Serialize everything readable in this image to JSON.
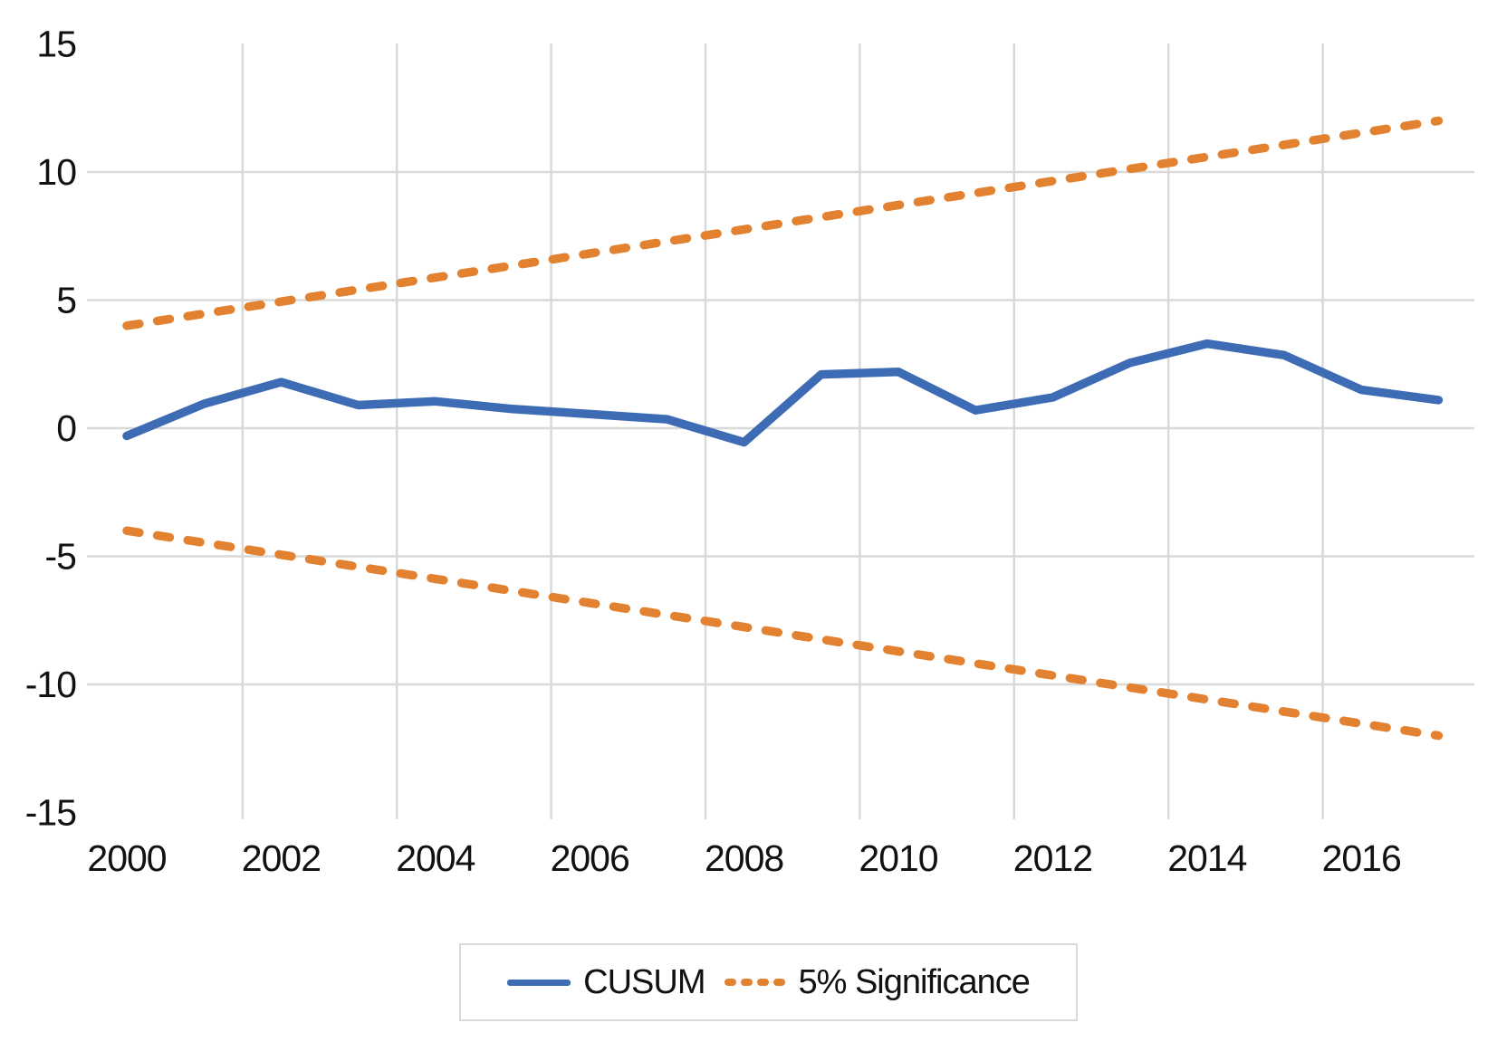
{
  "chart_data": {
    "type": "line",
    "title": "",
    "xlabel": "",
    "ylabel": "",
    "x": [
      2000,
      2001,
      2002,
      2003,
      2004,
      2005,
      2006,
      2007,
      2008,
      2009,
      2010,
      2011,
      2012,
      2013,
      2014,
      2015,
      2016,
      2017
    ],
    "series": [
      {
        "name": "CUSUM",
        "style": "solid",
        "color": "#3E6CB4",
        "values": [
          -0.3,
          0.95,
          1.8,
          0.9,
          1.05,
          0.75,
          0.55,
          0.35,
          -0.55,
          2.1,
          2.2,
          0.7,
          1.2,
          2.55,
          3.3,
          2.85,
          1.5,
          1.1
        ]
      },
      {
        "name": "5% Significance (upper bound)",
        "style": "dashed",
        "color": "#E2812F",
        "values": [
          4.0,
          4.47,
          4.94,
          5.41,
          5.88,
          6.35,
          6.82,
          7.29,
          7.76,
          8.24,
          8.71,
          9.18,
          9.65,
          10.12,
          10.59,
          11.06,
          11.53,
          12.0
        ]
      },
      {
        "name": "5% Significance (lower bound)",
        "style": "dashed",
        "color": "#E2812F",
        "values": [
          -4.0,
          -4.47,
          -4.94,
          -5.41,
          -5.88,
          -6.35,
          -6.82,
          -7.29,
          -7.76,
          -8.24,
          -8.71,
          -9.18,
          -9.65,
          -10.12,
          -10.59,
          -11.06,
          -11.53,
          -12.0
        ]
      }
    ],
    "x_tick_labels": [
      "2000",
      "2002",
      "2004",
      "2006",
      "2008",
      "2010",
      "2012",
      "2014",
      "2016"
    ],
    "x_tick_years": [
      2000,
      2002,
      2004,
      2006,
      2008,
      2010,
      2012,
      2014,
      2016
    ],
    "y_tick_labels": [
      "15",
      "10",
      "5",
      "0",
      "-5",
      "-10",
      "-15"
    ],
    "y_tick_values": [
      15,
      10,
      5,
      0,
      -5,
      -10,
      -15
    ],
    "y_gridline_values": [
      10,
      5,
      0,
      -5,
      -10
    ],
    "x_gridline_years": [
      2001.5,
      2003.5,
      2005.5,
      2007.5,
      2009.5,
      2011.5,
      2013.5,
      2015.5
    ],
    "ylim": [
      -15,
      15
    ],
    "grid": true,
    "grid_color": "#D9D9D9",
    "text_color": "#111111",
    "legend": {
      "position": "bottom-center",
      "entries": [
        {
          "label": "CUSUM",
          "style": "solid",
          "color": "#3E6CB4"
        },
        {
          "label": "5% Significance",
          "style": "dashed",
          "color": "#E2812F"
        }
      ]
    }
  }
}
